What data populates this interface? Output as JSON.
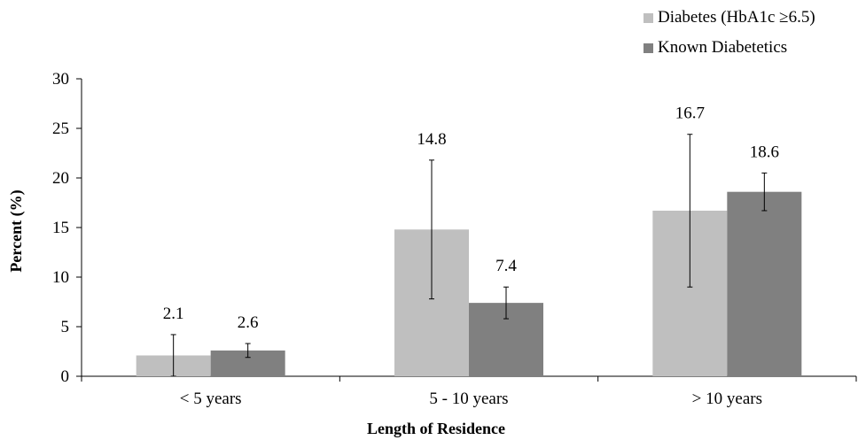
{
  "chart_data": {
    "type": "bar",
    "title": "",
    "xlabel": "Length of Residence",
    "ylabel": "Percent (%)",
    "ylim": [
      0,
      30
    ],
    "yticks": [
      0,
      5,
      10,
      15,
      20,
      25,
      30
    ],
    "categories": [
      "< 5 years",
      "5 - 10 years",
      "> 10 years"
    ],
    "series": [
      {
        "name": "Diabetes (HbA1c  ≥6.5)",
        "color": "#bfbfbf",
        "values": [
          2.1,
          14.8,
          16.7
        ],
        "labels": [
          "2.1",
          "14.8",
          "16.7"
        ],
        "err_low": [
          0,
          7.8,
          9.0
        ],
        "err_high": [
          4.2,
          21.8,
          24.4
        ]
      },
      {
        "name": "Known Diabetetics",
        "color": "#808080",
        "values": [
          2.6,
          7.4,
          18.6
        ],
        "labels": [
          "2.6",
          "7.4",
          "18.6"
        ],
        "err_low": [
          1.9,
          5.8,
          16.7
        ],
        "err_high": [
          3.3,
          9.0,
          20.5
        ]
      }
    ],
    "grid": false,
    "legend_position": "top-right"
  }
}
